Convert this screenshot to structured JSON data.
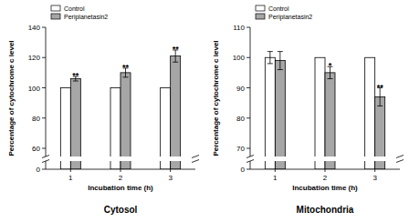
{
  "chart_data": [
    {
      "type": "bar",
      "title": "Cytosol",
      "x_label": "Incubation time (h)",
      "y_label": "Percentage of cytochrome c level",
      "categories": [
        "1",
        "2",
        "3"
      ],
      "series": [
        {
          "name": "Control",
          "color": "#ffffff",
          "values": [
            100,
            100,
            100
          ],
          "errors": [
            null,
            null,
            null
          ],
          "annotations": [
            null,
            null,
            null
          ]
        },
        {
          "name": "Periplanetasin2",
          "color": "#a6a6a6",
          "values": [
            106,
            110,
            121
          ],
          "errors": [
            1.5,
            3,
            4
          ],
          "annotations": [
            "**",
            "**",
            "**"
          ]
        }
      ],
      "ylim": [
        0,
        140
      ],
      "yticks": [
        0,
        60,
        80,
        100,
        120,
        140
      ],
      "grid": false,
      "legend": "upper left"
    },
    {
      "type": "bar",
      "title": "Mitochondria",
      "x_label": "Incubation time (h)",
      "y_label": "Percentage of cytochrome c level",
      "categories": [
        "1",
        "2",
        "3"
      ],
      "series": [
        {
          "name": "Control",
          "color": "#ffffff",
          "values": [
            100,
            100,
            100
          ],
          "errors": [
            2,
            null,
            null
          ],
          "annotations": [
            null,
            null,
            null
          ]
        },
        {
          "name": "Periplanetasin2",
          "color": "#a6a6a6",
          "values": [
            99,
            95,
            87
          ],
          "errors": [
            3,
            2,
            3
          ],
          "annotations": [
            null,
            "*",
            "**"
          ]
        }
      ],
      "ylim": [
        0,
        110
      ],
      "yticks": [
        0,
        70,
        80,
        90,
        100,
        110
      ],
      "grid": false,
      "legend": "upper left"
    }
  ]
}
